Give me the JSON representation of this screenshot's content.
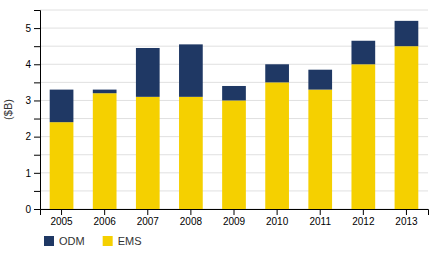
{
  "chart_data": {
    "type": "bar",
    "stacked": true,
    "ylabel": "($B)",
    "categories": [
      "2005",
      "2006",
      "2007",
      "2008",
      "2009",
      "2010",
      "2011",
      "2012",
      "2013"
    ],
    "series": [
      {
        "name": "EMS",
        "color": "#F5D000",
        "values": [
          2.4,
          3.2,
          3.1,
          3.1,
          3.0,
          3.5,
          3.3,
          4.0,
          4.5
        ]
      },
      {
        "name": "ODM",
        "color": "#1F3864",
        "values": [
          0.9,
          0.1,
          1.35,
          1.45,
          0.4,
          0.5,
          0.55,
          0.65,
          0.7
        ]
      }
    ],
    "ylim": [
      0,
      5.5
    ],
    "yticks": [
      0,
      {
        "value": 0.5,
        "label": ""
      },
      1,
      {
        "value": 1.5,
        "label": ""
      },
      2,
      {
        "value": 2.5,
        "label": ""
      },
      3,
      {
        "value": 3.5,
        "label": ""
      },
      4,
      {
        "value": 4.5,
        "label": ""
      },
      5,
      {
        "value": 5.5,
        "label": ""
      }
    ],
    "grid": true,
    "legend": "bottom"
  }
}
